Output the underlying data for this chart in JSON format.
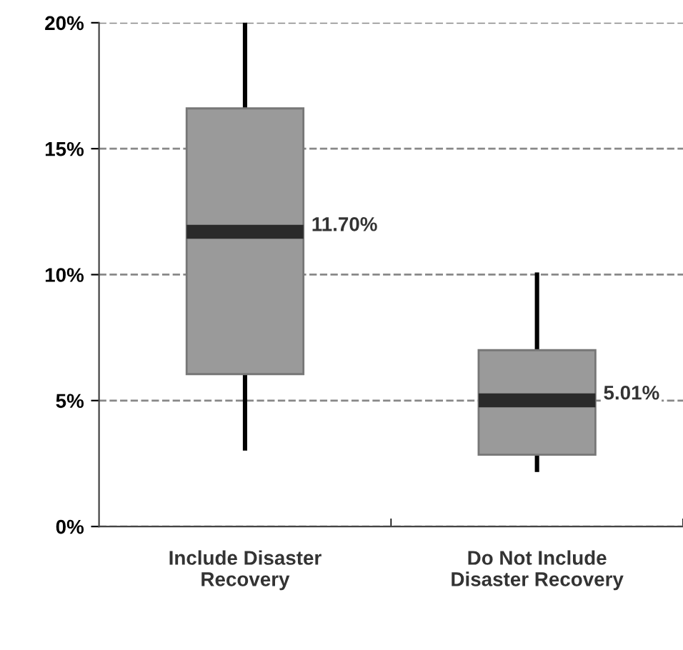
{
  "chart_data": {
    "type": "box",
    "categories": [
      "Include Disaster\nRecovery",
      "Do Not Include\nDisaster Recovery"
    ],
    "boxes": [
      {
        "low": 3.1,
        "q1": 6.05,
        "median": 11.7,
        "q3": 16.6,
        "high": 20
      },
      {
        "low": 2.25,
        "q1": 2.85,
        "median": 5.01,
        "q3": 7.0,
        "high": 10
      }
    ],
    "color": "#9a9a9a",
    "ylim": [
      0,
      20
    ],
    "yticks": [
      {
        "value": 0,
        "label": "0%"
      },
      {
        "value": 5,
        "label": "5%"
      },
      {
        "value": 10,
        "label": "10%"
      },
      {
        "value": 15,
        "label": "15%"
      },
      {
        "value": 20,
        "label": "20%"
      }
    ],
    "grid": "y",
    "annotations": [
      "11.70%",
      "5.01%"
    ]
  }
}
